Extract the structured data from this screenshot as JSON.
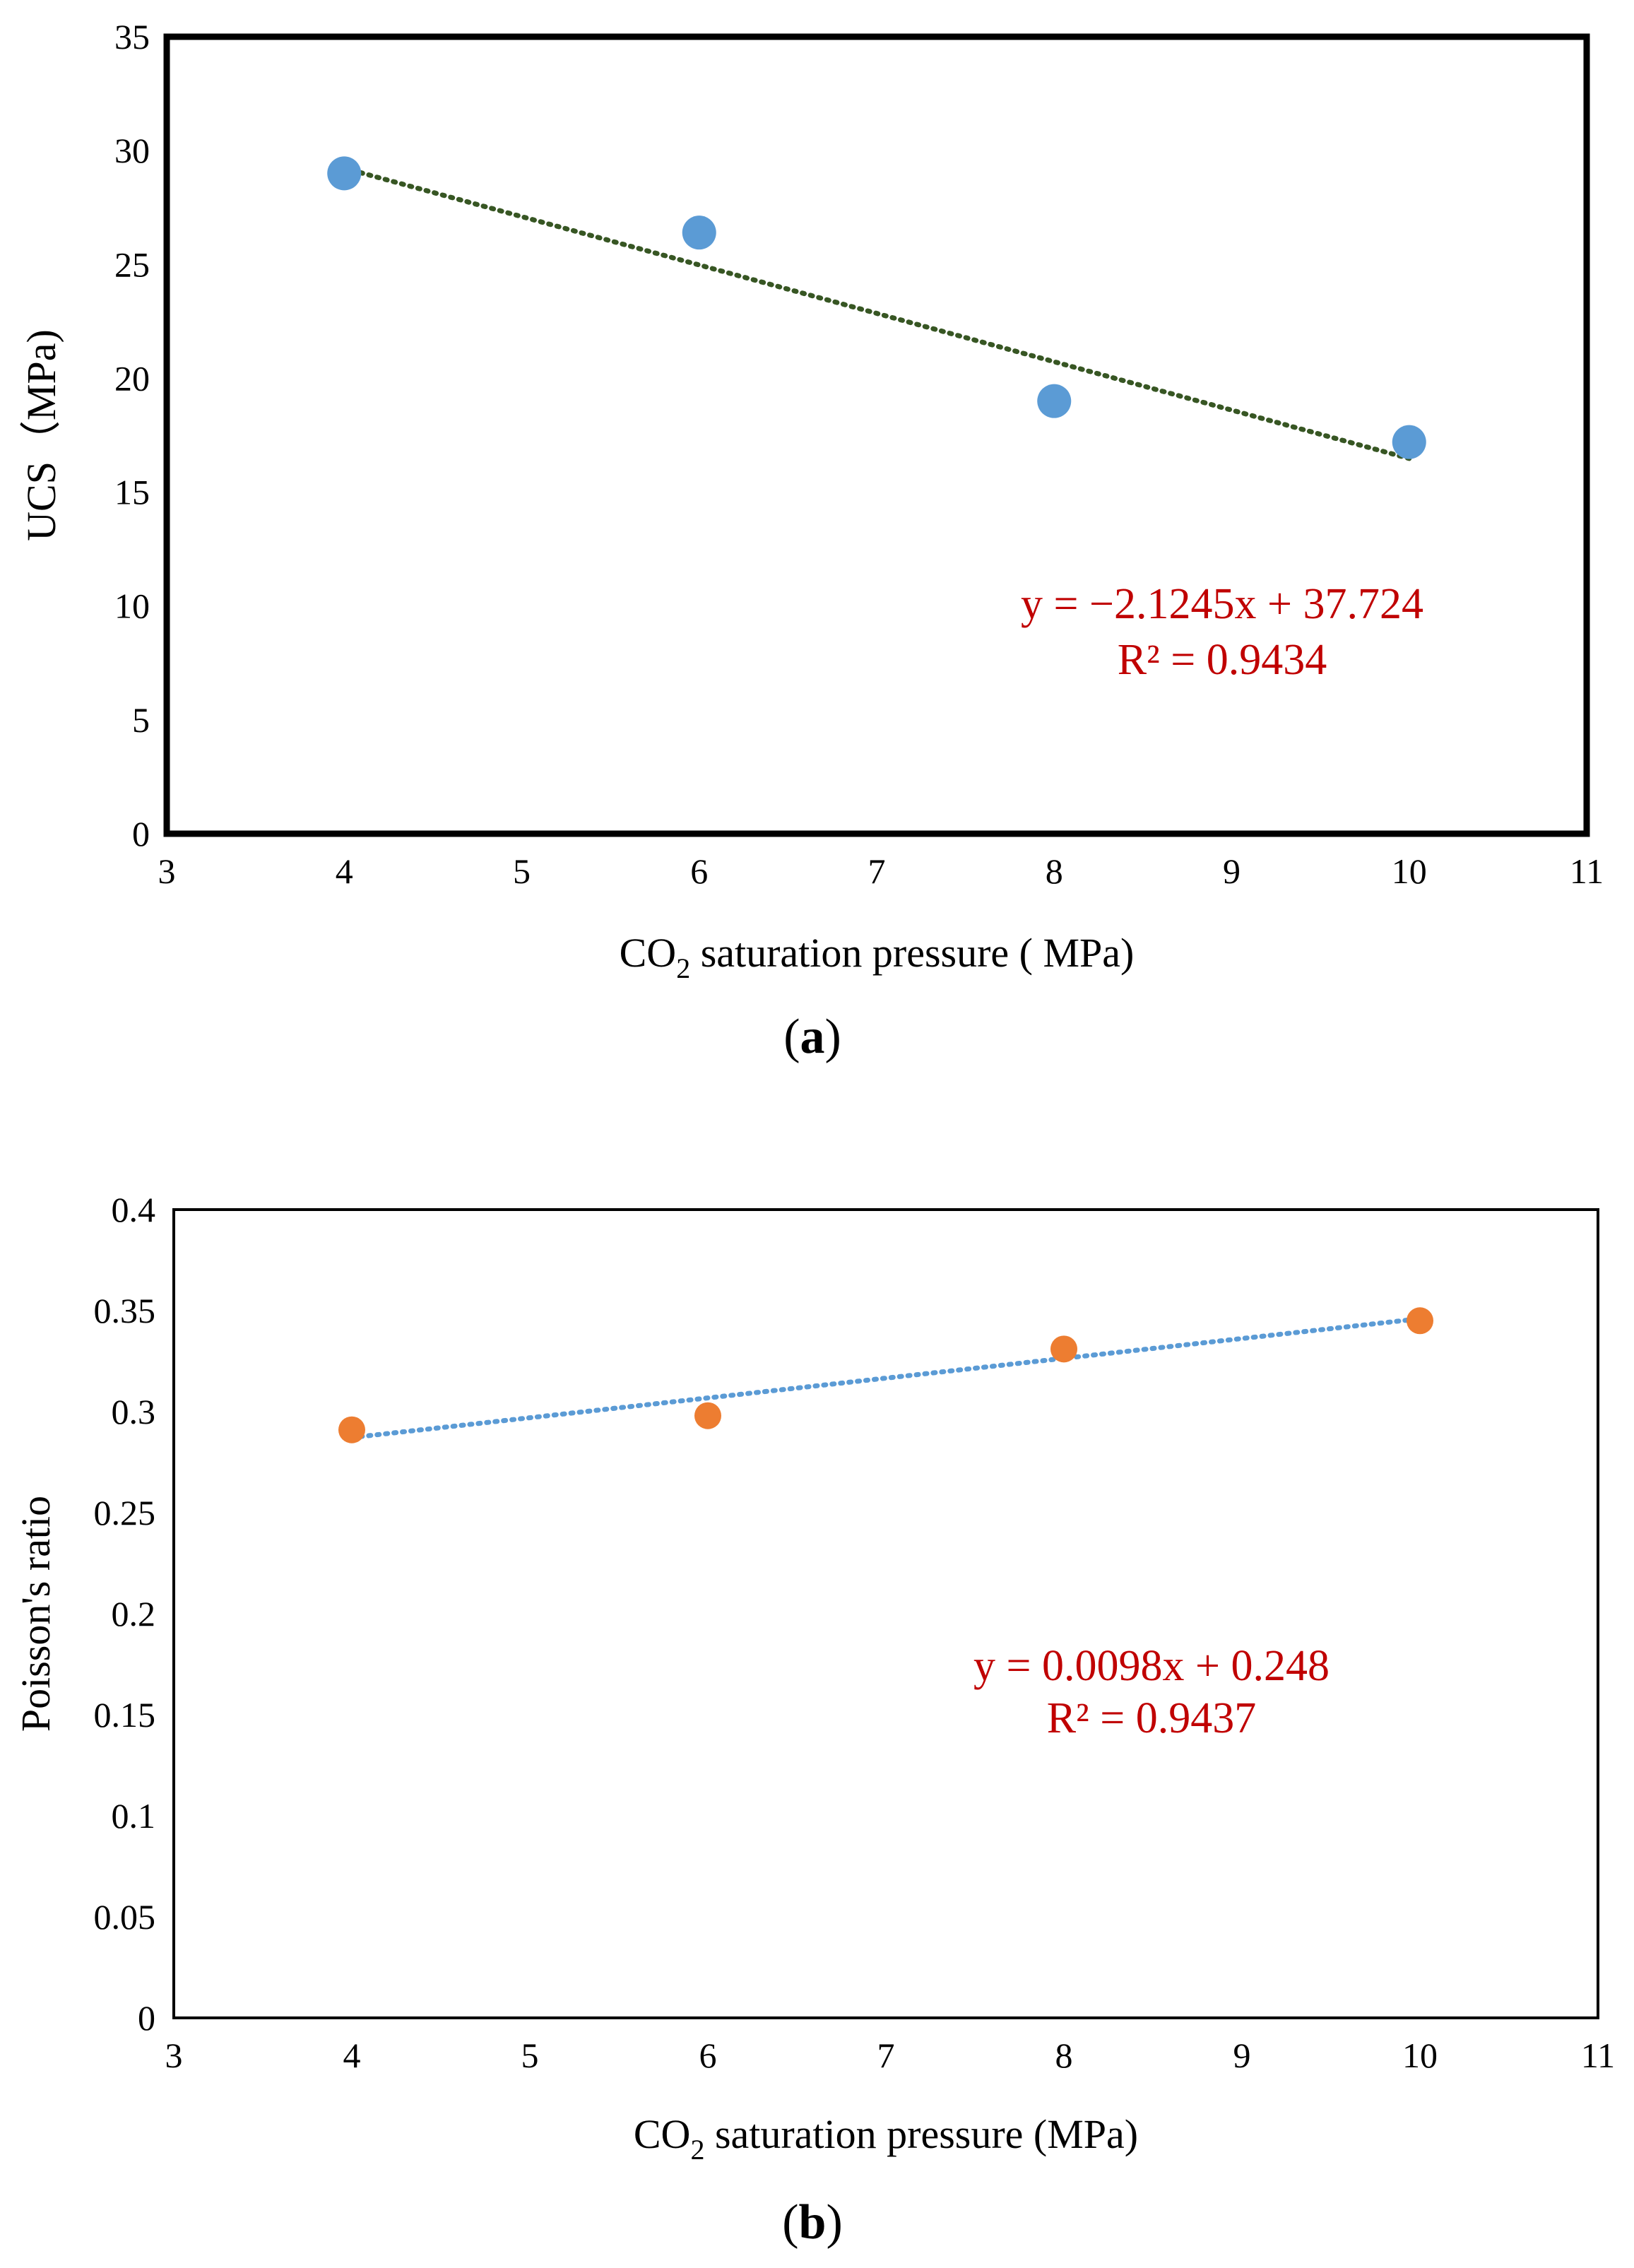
{
  "chart_data": [
    {
      "type": "scatter",
      "panel_label": "a",
      "xlabel_main": "CO",
      "xlabel_sub": "2",
      "xlabel_rest": " saturation pressure ( MPa)",
      "ylabel": "UCS（MPa)",
      "xlim": [
        3,
        11
      ],
      "ylim": [
        0,
        35
      ],
      "x_ticks": [
        3,
        4,
        5,
        6,
        7,
        8,
        9,
        10,
        11
      ],
      "y_ticks": [
        0,
        5,
        10,
        15,
        20,
        25,
        30,
        35
      ],
      "grid": false,
      "legend": "none",
      "series": [
        {
          "x": [
            4,
            6,
            8,
            10
          ],
          "y": [
            29.0,
            26.4,
            19.0,
            17.2
          ],
          "color": "#5b9bd5"
        }
      ],
      "trendline": {
        "slope": -2.1245,
        "intercept": 37.724,
        "x_range": [
          4,
          10
        ],
        "color": "#375623",
        "style": "dotted"
      },
      "annotations": [
        "y = −2.1245x + 37.724",
        "R² = 0.9434"
      ],
      "annotation_color": "#c00000",
      "frame_color": "#000000"
    },
    {
      "type": "scatter",
      "panel_label": "b",
      "xlabel_main": "CO",
      "xlabel_sub": "2",
      "xlabel_rest": " saturation pressure (MPa)",
      "ylabel": "Poisson's ratio",
      "xlim": [
        3,
        11
      ],
      "ylim": [
        0,
        0.4
      ],
      "x_ticks": [
        3,
        4,
        5,
        6,
        7,
        8,
        9,
        10,
        11
      ],
      "y_ticks": [
        0,
        0.05,
        0.1,
        0.15,
        0.2,
        0.25,
        0.3,
        0.35,
        0.4
      ],
      "grid": false,
      "legend": "none",
      "series": [
        {
          "x": [
            4,
            6,
            8,
            10
          ],
          "y": [
            0.291,
            0.298,
            0.331,
            0.345
          ],
          "color": "#ed7d31"
        }
      ],
      "trendline": {
        "slope": 0.0098,
        "intercept": 0.248,
        "x_range": [
          4,
          10
        ],
        "color": "#5b9bd5",
        "style": "dotted"
      },
      "annotations": [
        "y = 0.0098x + 0.248",
        "R² = 0.9437"
      ],
      "annotation_color": "#c00000",
      "frame_color": "#000000"
    }
  ]
}
